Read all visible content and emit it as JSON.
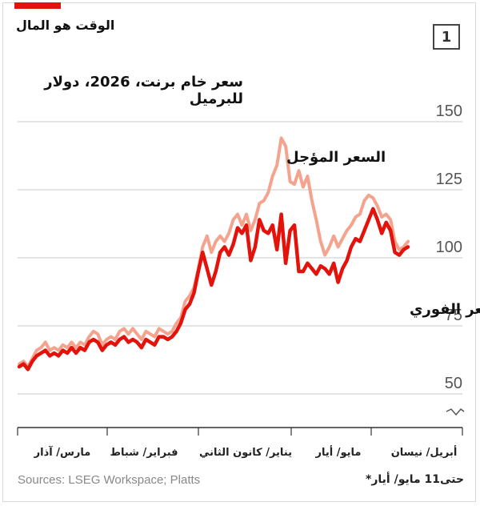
{
  "header": {
    "text": "الوقت هو المال",
    "chart_number": "1",
    "accent_color": "#e3120b"
  },
  "footer": {
    "source": "Sources: LSEG Workspace; Platts",
    "note": "حتى11 مايو/ أيار*"
  },
  "chart_data": {
    "type": "line",
    "title": "سعر خام برنت، 2026، دولار للبرميل",
    "y_ticks": [
      50,
      75,
      100,
      125,
      150
    ],
    "ylim": [
      50,
      150
    ],
    "y_axis_break": true,
    "grid": true,
    "x_labels": [
      "مارس/ آذار",
      "فبراير/ شباط",
      "يناير/ كانون الثاني",
      "مايو/ أيار",
      "أبريل/ نيسان"
    ],
    "series": [
      {
        "name": "السعر المؤجل",
        "color": "#f4a48e",
        "values": [
          61,
          62,
          60,
          63,
          66,
          67,
          69,
          66,
          67,
          66,
          68,
          67,
          69,
          67,
          69,
          68,
          71,
          73,
          72,
          68,
          70,
          71,
          70,
          73,
          74,
          72,
          74,
          72,
          70,
          73,
          72,
          71,
          74,
          73,
          72,
          73,
          76,
          78,
          84,
          86,
          89,
          96,
          104,
          108,
          102,
          106,
          108,
          106,
          109,
          114,
          116,
          112,
          116,
          110,
          114,
          120,
          121,
          124,
          130,
          134,
          144,
          141,
          128,
          127,
          132,
          126,
          130,
          121,
          114,
          106,
          101,
          104,
          108,
          104,
          107,
          110,
          112,
          115,
          116,
          121,
          123,
          122,
          119,
          115,
          116,
          114,
          106,
          103,
          104,
          106
        ]
      },
      {
        "name": "السعر الفوري",
        "color": "#e3120b",
        "values": [
          60,
          61,
          59,
          62,
          64,
          65,
          66,
          64,
          65,
          64,
          66,
          65,
          67,
          65,
          67,
          66,
          69,
          70,
          69,
          66,
          68,
          69,
          68,
          70,
          71,
          69,
          70,
          69,
          67,
          70,
          69,
          68,
          71,
          71,
          70,
          71,
          73,
          76,
          81,
          83,
          87,
          95,
          102,
          96,
          90,
          95,
          102,
          104,
          101,
          105,
          111,
          109,
          112,
          99,
          104,
          114,
          110,
          109,
          112,
          103,
          116,
          98,
          110,
          112,
          95,
          95,
          98,
          96,
          94,
          97,
          96,
          94,
          98,
          91,
          96,
          99,
          104,
          107,
          106,
          110,
          114,
          118,
          114,
          109,
          113,
          110,
          102,
          101,
          103,
          104
        ]
      }
    ]
  }
}
